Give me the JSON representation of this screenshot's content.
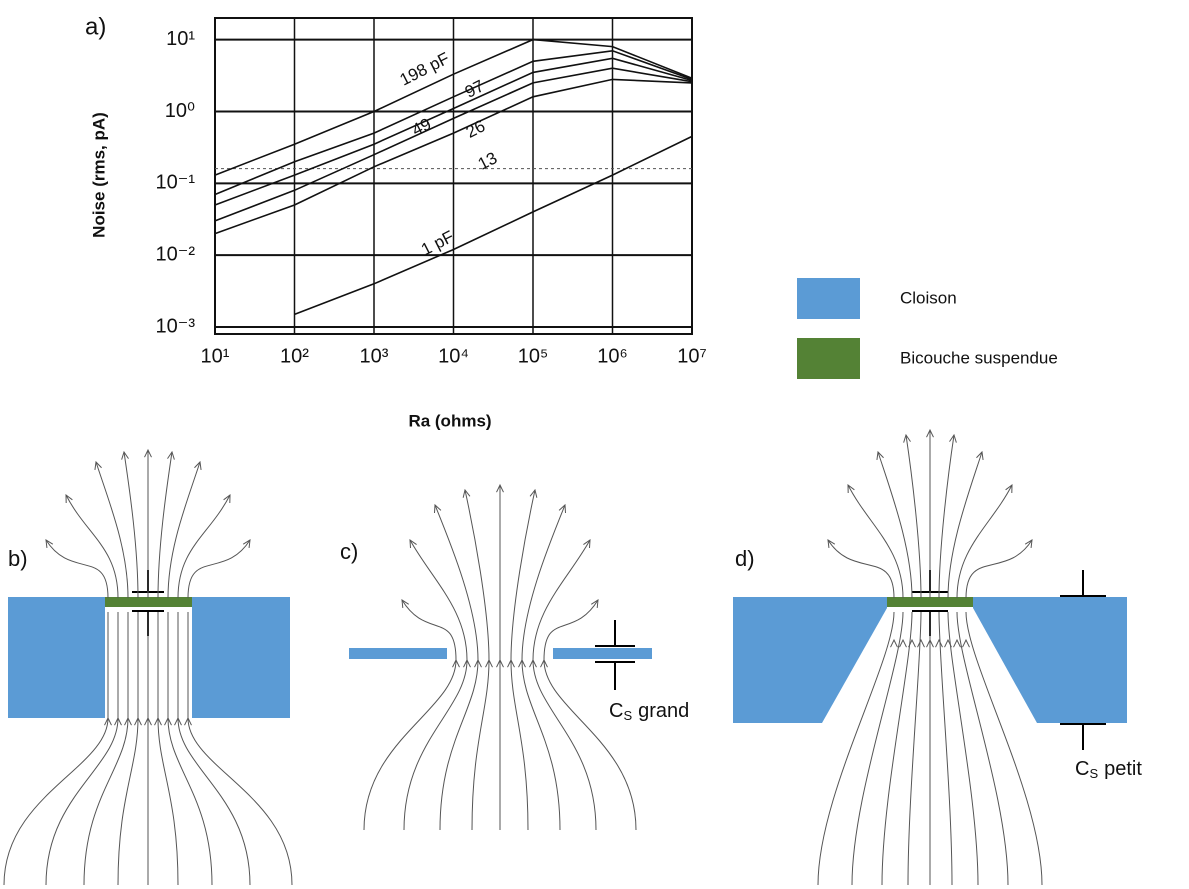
{
  "chart_data": {
    "type": "line",
    "xlabel": "Ra (ohms)",
    "ylabel": "Noise (rms, pA)",
    "x": [
      10,
      100,
      1000,
      10000,
      100000,
      1000000,
      10000000
    ],
    "series": [
      {
        "name": "198 pF",
        "color": "#111111",
        "values": [
          0.13,
          0.35,
          1.0,
          3.3,
          10,
          8,
          2.9
        ]
      },
      {
        "name": "97",
        "color": "#111111",
        "values": [
          0.07,
          0.2,
          0.5,
          1.6,
          5,
          7,
          2.8
        ]
      },
      {
        "name": "49",
        "color": "#111111",
        "values": [
          0.05,
          0.13,
          0.35,
          1.1,
          3.5,
          5.5,
          2.7
        ]
      },
      {
        "name": "26",
        "color": "#111111",
        "values": [
          0.03,
          0.08,
          0.25,
          0.8,
          2.5,
          4,
          2.6
        ]
      },
      {
        "name": "13",
        "color": "#111111",
        "values": [
          0.02,
          0.05,
          0.17,
          0.5,
          1.6,
          2.8,
          2.5
        ]
      },
      {
        "name": "1 pF",
        "color": "#111111",
        "values": [
          null,
          0.0015,
          0.004,
          0.012,
          0.04,
          0.13,
          0.45
        ]
      }
    ],
    "log_x": true,
    "log_y": true,
    "grid": true,
    "xlim": [
      10,
      10000000
    ],
    "ylim": [
      0.0008,
      20
    ],
    "xticks": [
      {
        "value": 10,
        "label": "10¹"
      },
      {
        "value": 100,
        "label": "10²"
      },
      {
        "value": 1000,
        "label": "10³"
      },
      {
        "value": 10000,
        "label": "10⁴"
      },
      {
        "value": 100000,
        "label": "10⁵"
      },
      {
        "value": 1000000,
        "label": "10⁶"
      },
      {
        "value": 10000000,
        "label": "10⁷"
      }
    ],
    "yticks": [
      {
        "value": 0.001,
        "label": "10⁻³"
      },
      {
        "value": 0.01,
        "label": "10⁻²"
      },
      {
        "value": 0.1,
        "label": "10⁻¹"
      },
      {
        "value": 1,
        "label": "10⁰"
      },
      {
        "value": 10,
        "label": "10¹"
      }
    ],
    "reference_line": 0.16
  },
  "panels": {
    "a": "a)",
    "b": "b)",
    "c": "c)",
    "d": "d)"
  },
  "legend": [
    {
      "label": "Cloison",
      "color": "#5b9bd5"
    },
    {
      "label": "Bicouche suspendue",
      "color": "#548235"
    }
  ],
  "annotations": {
    "cs_grand": {
      "symbol": "C",
      "subscript": "S",
      "text": "grand"
    },
    "cs_petit": {
      "symbol": "C",
      "subscript": "S",
      "text": "petit"
    }
  }
}
